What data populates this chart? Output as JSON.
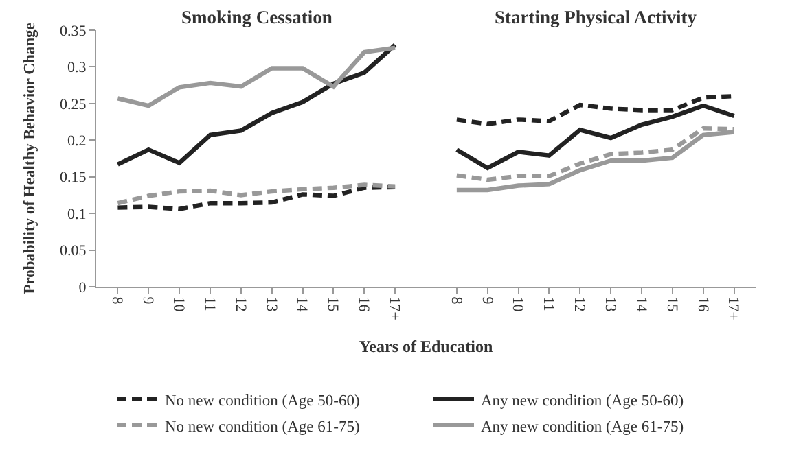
{
  "chart_data": {
    "type": "line",
    "ylabel": "Probability of Healthy Behavior Change",
    "xlabel": "Years of Education",
    "annotations": [
      "Smoking Cessation",
      "Starting Physical Activity"
    ],
    "categories": [
      "8",
      "9",
      "10",
      "11",
      "12",
      "13",
      "14",
      "15",
      "16",
      "17+",
      null,
      "8",
      "9",
      "10",
      "11",
      "12",
      "13",
      "14",
      "15",
      "16",
      "17+"
    ],
    "series": [
      {
        "name": "No new condition (Age 50-60)",
        "color": "#222222",
        "line_style": "dashed",
        "values": [
          0.108,
          0.109,
          0.106,
          0.114,
          0.114,
          0.115,
          0.126,
          0.124,
          0.135,
          0.136,
          null,
          0.228,
          0.222,
          0.228,
          0.226,
          0.248,
          0.243,
          0.241,
          0.241,
          0.258,
          0.26
        ]
      },
      {
        "name": "Any new condition (Age 50-60)",
        "color": "#222222",
        "line_style": "solid",
        "values": [
          0.167,
          0.187,
          0.169,
          0.207,
          0.213,
          0.237,
          0.252,
          0.277,
          0.292,
          0.33,
          null,
          0.187,
          0.162,
          0.184,
          0.179,
          0.214,
          0.203,
          0.221,
          0.232,
          0.247,
          0.233
        ]
      },
      {
        "name": "No new condition (Age 61-75)",
        "color": "#999999",
        "line_style": "dashed",
        "values": [
          0.114,
          0.124,
          0.13,
          0.131,
          0.125,
          0.13,
          0.133,
          0.135,
          0.139,
          0.137,
          null,
          0.152,
          0.146,
          0.151,
          0.151,
          0.168,
          0.181,
          0.183,
          0.187,
          0.216,
          0.215
        ]
      },
      {
        "name": "Any new condition (Age 61-75)",
        "color": "#999999",
        "line_style": "solid",
        "values": [
          0.257,
          0.247,
          0.272,
          0.278,
          0.273,
          0.298,
          0.298,
          0.273,
          0.32,
          0.326,
          null,
          0.132,
          0.132,
          0.138,
          0.14,
          0.159,
          0.172,
          0.172,
          0.176,
          0.207,
          0.211
        ]
      }
    ],
    "ylim": [
      0,
      0.35
    ],
    "yticks": [
      0,
      0.05,
      0.1,
      0.15,
      0.2,
      0.25,
      0.3,
      0.35
    ],
    "legend": "bottom",
    "marker": "none"
  }
}
